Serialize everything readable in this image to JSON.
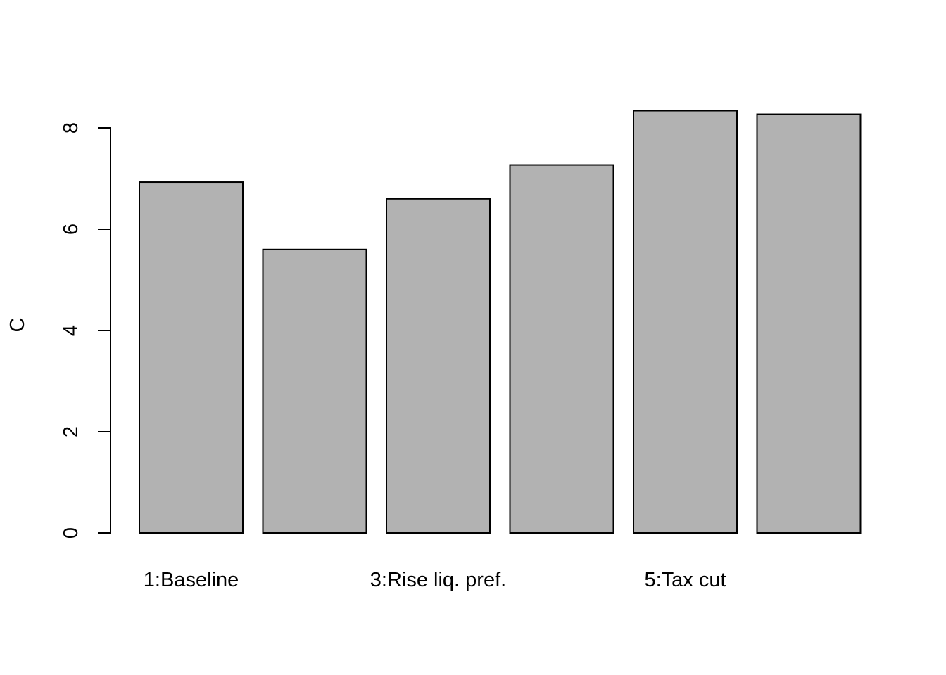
{
  "chart_data": {
    "type": "bar",
    "categories": [
      "1:Baseline",
      "",
      "3:Rise liq. pref.",
      "",
      "5:Tax cut",
      ""
    ],
    "values": [
      6.93,
      5.6,
      6.6,
      7.27,
      8.34,
      8.27
    ],
    "title": "",
    "xlabel": "",
    "ylabel": "C",
    "ylim": [
      0,
      8.34
    ],
    "yticks": [
      0,
      2,
      4,
      6,
      8
    ],
    "grid": false,
    "legend": "none",
    "colors": {
      "bar_fill": "#b2b2b2",
      "bar_stroke": "#000000",
      "axis": "#000000"
    }
  }
}
